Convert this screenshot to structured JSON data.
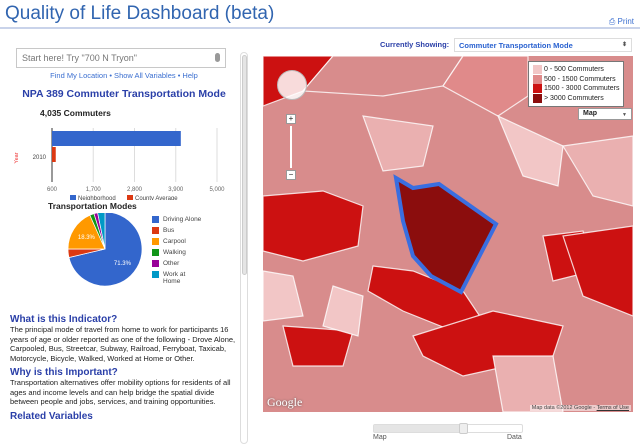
{
  "header": {
    "title": "Quality of Life Dashboard (beta)",
    "print_label": "Print"
  },
  "search": {
    "placeholder": "Start here! Try \"700 N Tryon\"",
    "links": "Find My Location • Show All Variables • Help"
  },
  "panel": {
    "title": "NPA 389 Commuter Transportation Mode",
    "bar_chart": {
      "type": "bar",
      "orientation": "horizontal",
      "title": "4,035 Commuters",
      "ylabel": "Year",
      "categories": [
        "2010"
      ],
      "series": [
        {
          "name": "Neighborhood",
          "values": [
            4035
          ],
          "color": "#3366cc"
        },
        {
          "name": "County Average",
          "values": [
            700
          ],
          "color": "#dc3912"
        }
      ],
      "xticks": [
        "600",
        "1,700",
        "2,800",
        "3,900",
        "5,000"
      ],
      "xlim": [
        600,
        5000
      ],
      "legend": "bottom"
    },
    "pie_chart": {
      "type": "pie",
      "title": "Transportation Modes",
      "labels": [
        "Driving Alone",
        "Bus",
        "Carpool",
        "Walking",
        "Other",
        "Work at Home"
      ],
      "legend_labels": [
        "Driving Alone",
        "Bus",
        "Carpool",
        "Walking",
        "Other",
        "Work at\nHome"
      ],
      "values": [
        71.3,
        3.7,
        18.3,
        1.9,
        1.6,
        3.2
      ],
      "data_labels": [
        "71.3%",
        "",
        "18.3%",
        "",
        "",
        ""
      ],
      "colors": [
        "#3366cc",
        "#dc3912",
        "#ff9900",
        "#109618",
        "#990099",
        "#0099c6"
      ],
      "legend": "right"
    },
    "sections": [
      {
        "heading": "What is this Indicator?",
        "text": "The principal mode of travel from home to work for participants 16 years of age or older reported as one of the following - Drove Alone, Carpooled, Bus, Streetcar, Subway, Railroad, Ferryboat, Taxicab, Motorcycle, Bicycle, Walked, Worked at Home or Other."
      },
      {
        "heading": "Why is this Important?",
        "text": "Transportation alternatives offer mobility options for residents of all ages and income levels and can help bridge the spatial divide between people and jobs, services, and training opportunities."
      },
      {
        "heading": "Related Variables",
        "text": ""
      }
    ]
  },
  "map": {
    "showing_label": "Currently Showing:",
    "showing_value": "Commuter Transportation Mode",
    "legend": [
      {
        "label": "0 - 500 Commuters",
        "color": "#f2c6c6"
      },
      {
        "label": "500 - 1500 Commuters",
        "color": "#e08a8a"
      },
      {
        "label": "1500 - 3000 Commuters",
        "color": "#cc1111"
      },
      {
        "label": "> 3000 Commuters",
        "color": "#8b0d0d"
      }
    ],
    "map_type": "Map",
    "google": "Google",
    "attribution": "Map data ©2012 Google - ",
    "terms": "Terms of Use",
    "selected_color": "#3a6ee0"
  },
  "slider": {
    "left_label": "Map",
    "right_label": "Data",
    "value": 0.6
  }
}
